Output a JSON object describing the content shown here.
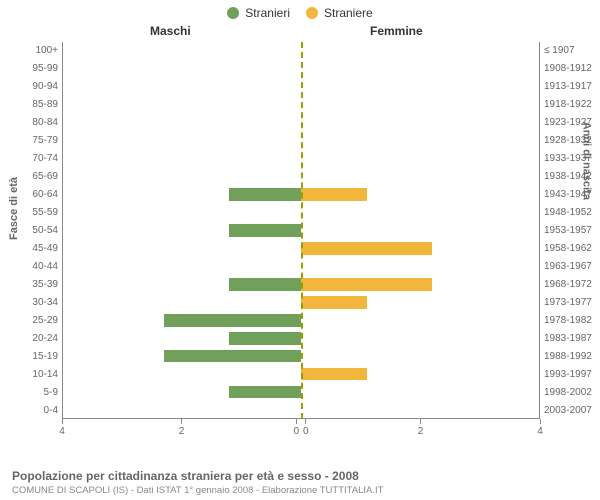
{
  "chart": {
    "type": "pyramid_bar",
    "legend": [
      {
        "label": "Stranieri",
        "color": "#71a05a"
      },
      {
        "label": "Straniere",
        "color": "#f2b63c"
      }
    ],
    "col_titles": {
      "left": "Maschi",
      "right": "Femmine"
    },
    "axis_titles": {
      "left": "Fasce di età",
      "right": "Anni di nascita"
    },
    "x": {
      "max": 4,
      "ticks": [
        4,
        2,
        0.0001,
        0,
        2,
        4
      ]
    },
    "background_color": "#ffffff",
    "bar_colors": {
      "male": "#71a05a",
      "female": "#f2b63c"
    },
    "grid_color": "#888888",
    "center_line_color": "#999f00",
    "label_fontsize": 10,
    "title_fontsize": 12,
    "rows": [
      {
        "age": "100+",
        "birth": "≤ 1907",
        "m": 0,
        "f": 0
      },
      {
        "age": "95-99",
        "birth": "1908-1912",
        "m": 0,
        "f": 0
      },
      {
        "age": "90-94",
        "birth": "1913-1917",
        "m": 0,
        "f": 0
      },
      {
        "age": "85-89",
        "birth": "1918-1922",
        "m": 0,
        "f": 0
      },
      {
        "age": "80-84",
        "birth": "1923-1927",
        "m": 0,
        "f": 0
      },
      {
        "age": "75-79",
        "birth": "1928-1932",
        "m": 0,
        "f": 0
      },
      {
        "age": "70-74",
        "birth": "1933-1937",
        "m": 0,
        "f": 0
      },
      {
        "age": "65-69",
        "birth": "1938-1942",
        "m": 0,
        "f": 0
      },
      {
        "age": "60-64",
        "birth": "1943-1947",
        "m": 1.2,
        "f": 1.1
      },
      {
        "age": "55-59",
        "birth": "1948-1952",
        "m": 0,
        "f": 0
      },
      {
        "age": "50-54",
        "birth": "1953-1957",
        "m": 1.2,
        "f": 0
      },
      {
        "age": "45-49",
        "birth": "1958-1962",
        "m": 0,
        "f": 2.2
      },
      {
        "age": "40-44",
        "birth": "1963-1967",
        "m": 0,
        "f": 0
      },
      {
        "age": "35-39",
        "birth": "1968-1972",
        "m": 1.2,
        "f": 2.2
      },
      {
        "age": "30-34",
        "birth": "1973-1977",
        "m": 0,
        "f": 1.1
      },
      {
        "age": "25-29",
        "birth": "1978-1982",
        "m": 2.3,
        "f": 0
      },
      {
        "age": "20-24",
        "birth": "1983-1987",
        "m": 1.2,
        "f": 0
      },
      {
        "age": "15-19",
        "birth": "1988-1992",
        "m": 2.3,
        "f": 0
      },
      {
        "age": "10-14",
        "birth": "1993-1997",
        "m": 0,
        "f": 1.1
      },
      {
        "age": "5-9",
        "birth": "1998-2002",
        "m": 1.2,
        "f": 0
      },
      {
        "age": "0-4",
        "birth": "2003-2007",
        "m": 0,
        "f": 0
      }
    ]
  },
  "caption": {
    "title": "Popolazione per cittadinanza straniera per età e sesso - 2008",
    "sub": "COMUNE DI SCAPOLI (IS) - Dati ISTAT 1° gennaio 2008 - Elaborazione TUTTITALIA.IT"
  }
}
